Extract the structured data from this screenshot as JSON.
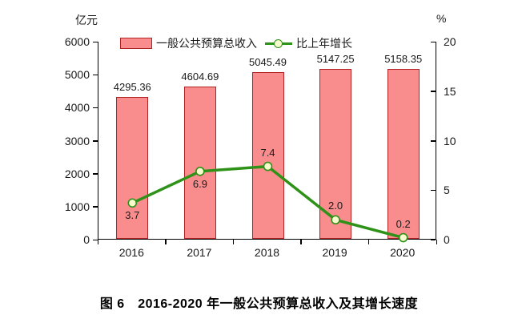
{
  "figure": {
    "caption": "图 6　2016-2020 年一般公共预算总收入及其增长速度"
  },
  "chart_data": {
    "type": "bar",
    "subtype": "bar-line-combo",
    "title": "图 6　2016-2020 年一般公共预算总收入及其增长速度",
    "categories": [
      "2016",
      "2017",
      "2018",
      "2019",
      "2020"
    ],
    "series": [
      {
        "name": "一般公共预算总收入",
        "type": "bar",
        "axis": "left",
        "values": [
          4295.36,
          4604.69,
          5045.49,
          5147.25,
          5158.35
        ],
        "value_labels": [
          "4295.36",
          "4604.69",
          "5045.49",
          "5147.25",
          "5158.35"
        ]
      },
      {
        "name": "比上年增长",
        "type": "line",
        "axis": "right",
        "values": [
          3.7,
          6.9,
          7.4,
          2.0,
          0.2
        ],
        "value_labels": [
          "3.7",
          "6.9",
          "7.4",
          "2.0",
          "0.2"
        ],
        "label_placement": [
          "below",
          "below",
          "above",
          "above",
          "above"
        ]
      }
    ],
    "left_axis": {
      "unit": "亿元",
      "min": 0,
      "max": 6000,
      "ticks": [
        0,
        1000,
        2000,
        3000,
        4000,
        5000,
        6000
      ]
    },
    "right_axis": {
      "unit": "%",
      "min": 0,
      "max": 20,
      "ticks": [
        0,
        5,
        10,
        15,
        20
      ]
    },
    "legend_position": "top",
    "grid": false,
    "colors": {
      "bar_fill": "#F98D8D",
      "bar_border": "#B22222",
      "line": "#2E9118",
      "marker_fill": "#F7FBCE",
      "marker_border": "#2E9118",
      "axis": "#000000",
      "text": "#1a1a1a"
    }
  }
}
